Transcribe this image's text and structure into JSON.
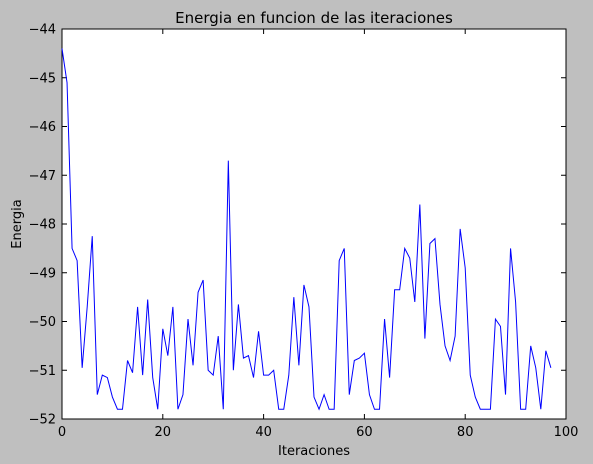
{
  "chart_data": {
    "type": "line",
    "title": "Energia en funcion de las iteraciones",
    "xlabel": "Iteraciones",
    "ylabel": "Energia",
    "xlim": [
      0,
      100
    ],
    "ylim": [
      -52,
      -44
    ],
    "xticks": [
      0,
      20,
      40,
      60,
      80,
      100
    ],
    "xtick_labels": [
      "0",
      "20",
      "40",
      "60",
      "80",
      "100"
    ],
    "yticks": [
      -52,
      -51,
      -50,
      -49,
      -48,
      -47,
      -46,
      -45,
      -44
    ],
    "ytick_labels": [
      "−52",
      "−51",
      "−50",
      "−49",
      "−48",
      "−47",
      "−46",
      "−45",
      "−44"
    ],
    "grid": false,
    "series": [
      {
        "color": "#0000ff",
        "x": [
          0,
          1,
          2,
          3,
          4,
          5,
          6,
          7,
          8,
          9,
          10,
          11,
          12,
          13,
          14,
          15,
          16,
          17,
          18,
          19,
          20,
          21,
          22,
          23,
          24,
          25,
          26,
          27,
          28,
          29,
          30,
          31,
          32,
          33,
          34,
          35,
          36,
          37,
          38,
          39,
          40,
          41,
          42,
          43,
          44,
          45,
          46,
          47,
          48,
          49,
          50,
          51,
          52,
          53,
          54,
          55,
          56,
          57,
          58,
          59,
          60,
          61,
          62,
          63,
          64,
          65,
          66,
          67,
          68,
          69,
          70,
          71,
          72,
          73,
          74,
          75,
          76,
          77,
          78,
          79,
          80,
          81,
          82,
          83,
          84,
          85,
          86,
          87,
          88,
          89,
          90,
          91,
          92,
          93,
          94,
          95,
          96,
          97
        ],
        "y": [
          -44.4,
          -45.1,
          -48.5,
          -48.75,
          -50.95,
          -49.7,
          -48.25,
          -51.5,
          -51.1,
          -51.15,
          -51.55,
          -51.8,
          -51.8,
          -50.8,
          -51.05,
          -49.7,
          -51.1,
          -49.55,
          -51.15,
          -51.8,
          -50.15,
          -50.7,
          -49.7,
          -51.8,
          -51.5,
          -49.95,
          -50.9,
          -49.4,
          -49.15,
          -51.0,
          -51.1,
          -50.3,
          -51.8,
          -46.7,
          -51.0,
          -49.65,
          -50.75,
          -50.7,
          -51.15,
          -50.2,
          -51.1,
          -51.1,
          -51.0,
          -51.8,
          -51.8,
          -51.1,
          -49.5,
          -50.9,
          -49.25,
          -49.7,
          -51.55,
          -51.8,
          -51.5,
          -51.8,
          -51.8,
          -48.75,
          -48.5,
          -51.5,
          -50.8,
          -50.75,
          -50.65,
          -51.5,
          -51.8,
          -51.8,
          -49.95,
          -51.15,
          -49.35,
          -49.35,
          -48.5,
          -48.7,
          -49.6,
          -47.6,
          -50.35,
          -48.4,
          -48.3,
          -49.65,
          -50.5,
          -50.8,
          -50.3,
          -48.1,
          -48.9,
          -51.1,
          -51.55,
          -51.8,
          -51.8,
          -51.8,
          -49.95,
          -50.1,
          -51.5,
          -48.5,
          -49.6,
          -51.8,
          -51.8,
          -50.5,
          -50.95,
          -51.8,
          -50.6,
          -50.95
        ]
      }
    ]
  }
}
